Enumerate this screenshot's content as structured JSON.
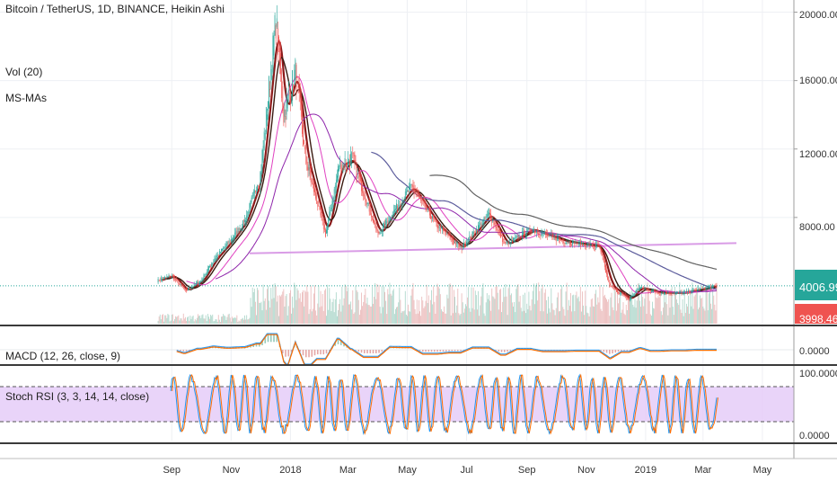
{
  "legend": {
    "symbol": "Bitcoin / TetherUS, 1D, BINANCE, Heikin Ashi",
    "vol": "Vol (20)",
    "ma": "MS-MAs",
    "macd": "MACD (12, 26, close, 9)",
    "stoch": "Stoch RSI (3, 3, 14, 14, close)"
  },
  "colors": {
    "up": "#26a69a",
    "down": "#ef5350",
    "vol_up": "#93c9b9",
    "vol_down": "#e4a6a6",
    "ma_fast": "#8b1a1a",
    "ma_dark": "#3a1a10",
    "ma_magenta": "#e040c0",
    "ma_purple": "#8e24aa",
    "ma_slate": "#5c5c9c",
    "ma_gray": "#616161",
    "trend": "#d99ce6",
    "macd_line": "#2196f3",
    "signal_line": "#ff6d00",
    "stoch_k": "#2196f3",
    "stoch_d": "#ff6d00",
    "stoch_band": "#e3c9f7",
    "price_tag": "#26a69a",
    "low_tag": "#ef5350",
    "grid": "#eef0f4",
    "separator": "#3a3a3a"
  },
  "chart_data": {
    "type": "candlestick",
    "style": "Heikin Ashi",
    "interval": "1D",
    "exchange": "BINANCE",
    "ylim": [
      2000,
      20500
    ],
    "yticks": [
      "20000.00",
      "16000.00",
      "12000.00",
      "8000.00"
    ],
    "x_ticks": [
      "Sep",
      "Nov",
      "2018",
      "Mar",
      "May",
      "Jul",
      "Sep",
      "Nov",
      "2019",
      "Mar",
      "May"
    ],
    "last_price": "4006.99",
    "low_label": "3998.46",
    "price_path": [
      [
        "2017-08-17",
        4300
      ],
      [
        "2017-09-01",
        4600
      ],
      [
        "2017-09-15",
        3700
      ],
      [
        "2017-10-01",
        4300
      ],
      [
        "2017-10-15",
        5600
      ],
      [
        "2017-11-01",
        6700
      ],
      [
        "2017-11-15",
        7800
      ],
      [
        "2017-12-01",
        10500
      ],
      [
        "2017-12-17",
        19500
      ],
      [
        "2017-12-25",
        14000
      ],
      [
        "2018-01-06",
        16500
      ],
      [
        "2018-01-16",
        11500
      ],
      [
        "2018-02-06",
        7000
      ],
      [
        "2018-02-20",
        11000
      ],
      [
        "2018-03-05",
        11400
      ],
      [
        "2018-04-01",
        7000
      ],
      [
        "2018-04-15",
        8200
      ],
      [
        "2018-05-05",
        9800
      ],
      [
        "2018-06-01",
        7500
      ],
      [
        "2018-06-25",
        6200
      ],
      [
        "2018-07-24",
        8200
      ],
      [
        "2018-08-10",
        6400
      ],
      [
        "2018-09-05",
        7300
      ],
      [
        "2018-10-10",
        6600
      ],
      [
        "2018-11-14",
        6300
      ],
      [
        "2018-11-25",
        4000
      ],
      [
        "2018-12-15",
        3200
      ],
      [
        "2018-12-25",
        3900
      ],
      [
        "2019-01-15",
        3600
      ],
      [
        "2019-02-10",
        3600
      ],
      [
        "2019-03-15",
        4007
      ]
    ],
    "volume_note": "Vol (20) histogram",
    "macd": {
      "name": "MACD (12, 26, close, 9)",
      "yticks": [
        "0.0000"
      ]
    },
    "stoch_rsi": {
      "name": "Stoch RSI (3, 3, 14, 14, close)",
      "yticks": [
        "100.0000",
        "0.0000"
      ],
      "bands": [
        80,
        20
      ]
    }
  }
}
